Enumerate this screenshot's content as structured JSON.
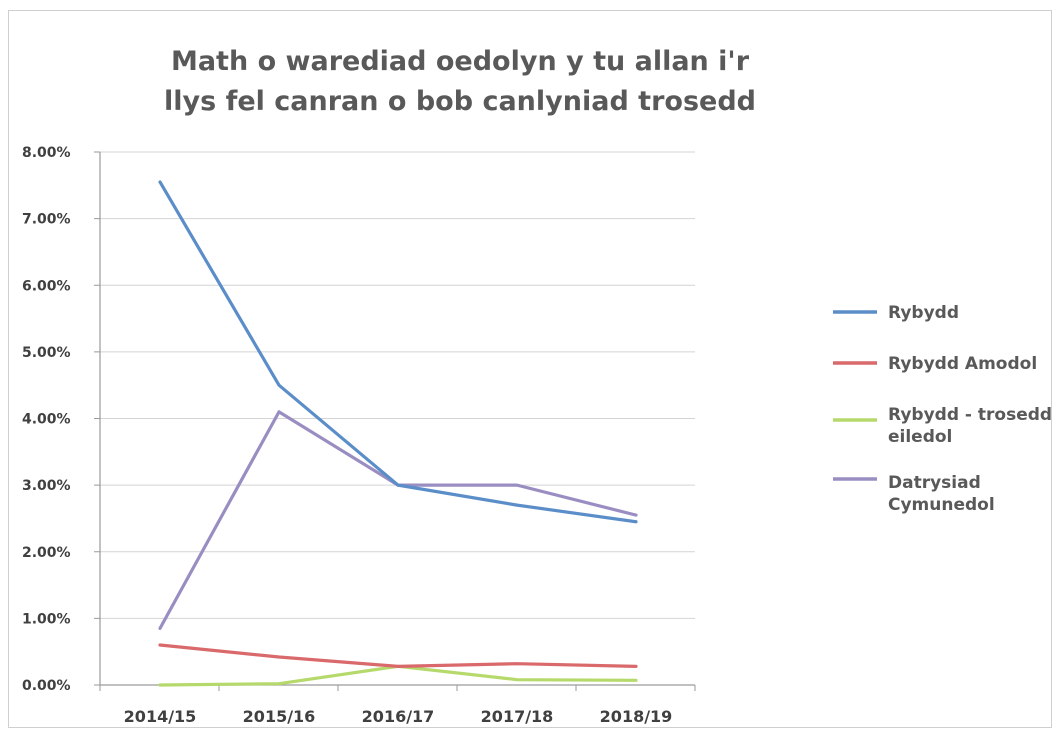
{
  "chart_data": {
    "type": "line",
    "title_line1": "Math o warediad oedolyn y tu allan i'r",
    "title_line2": "llys fel canran o bob canlyniad trosedd",
    "categories": [
      "2014/15",
      "2015/16",
      "2016/17",
      "2017/18",
      "2018/19"
    ],
    "y_ticks": [
      "0.00%",
      "1.00%",
      "2.00%",
      "3.00%",
      "4.00%",
      "5.00%",
      "6.00%",
      "7.00%",
      "8.00%"
    ],
    "ylim": [
      0,
      8
    ],
    "grid": true,
    "legend_position": "right",
    "series": [
      {
        "name": "Rybydd",
        "color": "#5b8ec9",
        "values": [
          7.55,
          4.5,
          3.0,
          2.7,
          2.45
        ]
      },
      {
        "name": "Rybydd Amodol",
        "color": "#d9696b",
        "values": [
          0.6,
          0.42,
          0.28,
          0.32,
          0.28
        ]
      },
      {
        "name": "Rybydd - trosedd eiledol",
        "color": "#b5d96b",
        "values": [
          0.0,
          0.02,
          0.28,
          0.08,
          0.07
        ]
      },
      {
        "name": "Datrysiad Cymunedol",
        "color": "#9a8dc2",
        "values": [
          0.85,
          4.1,
          3.0,
          3.0,
          2.55
        ]
      }
    ]
  }
}
